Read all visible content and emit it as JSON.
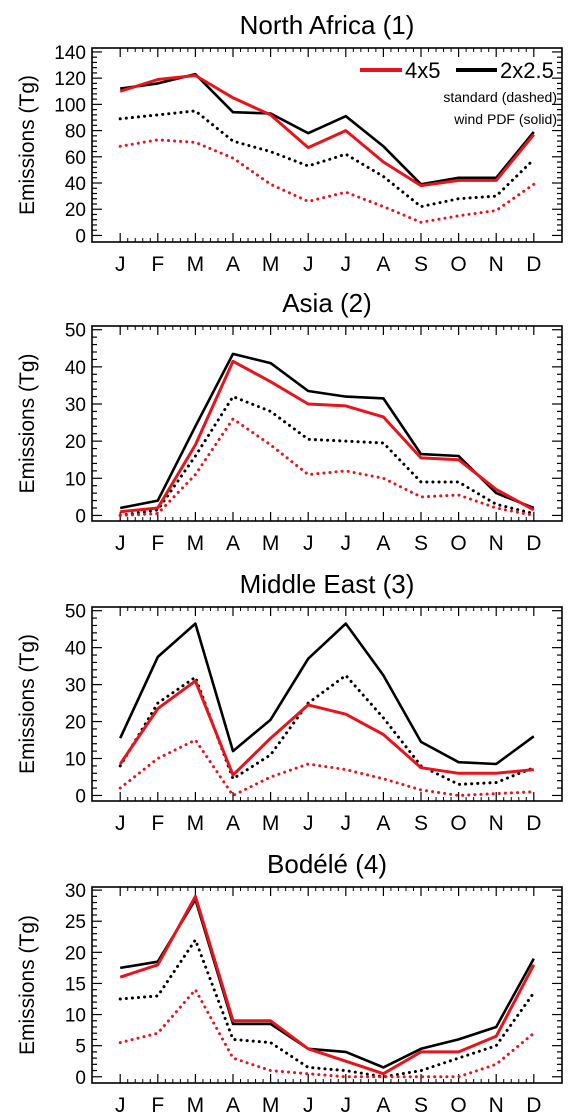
{
  "figure": {
    "months": [
      "J",
      "F",
      "M",
      "A",
      "M",
      "J",
      "J",
      "A",
      "S",
      "O",
      "N",
      "D"
    ],
    "legend": {
      "entries": [
        {
          "label": "4x5",
          "color": "#e8141b"
        },
        {
          "label": "2x2.5",
          "color": "#000000"
        }
      ],
      "note1": "standard (dashed)",
      "note2": "wind PDF (solid)"
    }
  },
  "chart_data": [
    {
      "type": "line",
      "title": "North Africa (1)",
      "xlabel": "",
      "ylabel": "Emissions (Tg)",
      "categories": [
        "J",
        "F",
        "M",
        "A",
        "M",
        "J",
        "J",
        "A",
        "S",
        "O",
        "N",
        "D"
      ],
      "ylim": [
        -5,
        143
      ],
      "yticks": [
        0,
        20,
        40,
        60,
        80,
        100,
        120,
        140
      ],
      "series": [
        {
          "name": "2x2.5 wind PDF (solid)",
          "color": "#000000",
          "style": "solid",
          "values": [
            112,
            116,
            123,
            94,
            93,
            78,
            91,
            68,
            39,
            44,
            44,
            79
          ]
        },
        {
          "name": "4x5 wind PDF (solid)",
          "color": "#e8141b",
          "style": "solid",
          "values": [
            110,
            119,
            122,
            105,
            92,
            67,
            80,
            56,
            38,
            42,
            42,
            77
          ]
        },
        {
          "name": "2x2.5 standard (dashed)",
          "color": "#000000",
          "style": "dotted",
          "values": [
            89,
            92,
            95,
            72,
            64,
            53,
            62,
            45,
            22,
            28,
            30,
            58
          ]
        },
        {
          "name": "4x5 standard (dashed)",
          "color": "#e8141b",
          "style": "dotted",
          "values": [
            68,
            73,
            71,
            59,
            39,
            26,
            33,
            22,
            10,
            15,
            19,
            39
          ]
        }
      ]
    },
    {
      "type": "line",
      "title": "Asia (2)",
      "xlabel": "",
      "ylabel": "Emissions (Tg)",
      "categories": [
        "J",
        "F",
        "M",
        "A",
        "M",
        "J",
        "J",
        "A",
        "S",
        "O",
        "N",
        "D"
      ],
      "ylim": [
        -1.5,
        51
      ],
      "yticks": [
        0,
        10,
        20,
        30,
        40,
        50
      ],
      "series": [
        {
          "name": "2x2.5 wind PDF (solid)",
          "color": "#000000",
          "style": "solid",
          "values": [
            2,
            4,
            24,
            43.5,
            41,
            33.5,
            32,
            31.5,
            16.5,
            16,
            6,
            2
          ]
        },
        {
          "name": "4x5 wind PDF (solid)",
          "color": "#e8141b",
          "style": "solid",
          "values": [
            1,
            2,
            19,
            41.5,
            36,
            30,
            29.5,
            26.5,
            15.5,
            15,
            7,
            1.5
          ]
        },
        {
          "name": "2x2.5 standard (dashed)",
          "color": "#000000",
          "style": "dotted",
          "values": [
            0,
            1.5,
            16,
            32,
            28,
            20.5,
            20,
            19.5,
            9,
            9,
            3,
            0.5
          ]
        },
        {
          "name": "4x5 standard (dashed)",
          "color": "#e8141b",
          "style": "dotted",
          "values": [
            0,
            0.5,
            11,
            26,
            19,
            11,
            12,
            10,
            5,
            5.5,
            2,
            0
          ]
        }
      ]
    },
    {
      "type": "line",
      "title": "Middle East (3)",
      "xlabel": "",
      "ylabel": "Emissions (Tg)",
      "categories": [
        "J",
        "F",
        "M",
        "A",
        "M",
        "J",
        "J",
        "A",
        "S",
        "O",
        "N",
        "D"
      ],
      "ylim": [
        -1.5,
        51
      ],
      "yticks": [
        0,
        10,
        20,
        30,
        40,
        50
      ],
      "series": [
        {
          "name": "2x2.5 wind PDF (solid)",
          "color": "#000000",
          "style": "solid",
          "values": [
            15.5,
            37.5,
            46.5,
            12,
            20.5,
            37,
            46.5,
            32.5,
            14.5,
            9,
            8.5,
            16
          ]
        },
        {
          "name": "4x5 wind PDF (solid)",
          "color": "#e8141b",
          "style": "solid",
          "values": [
            8.5,
            23.5,
            31,
            5.5,
            15.5,
            24.5,
            22,
            16.5,
            7.5,
            6,
            6,
            7
          ]
        },
        {
          "name": "2x2.5 standard (dashed)",
          "color": "#000000",
          "style": "dotted",
          "values": [
            8,
            25,
            32,
            4.5,
            11,
            25,
            32.5,
            21,
            8,
            3,
            3.5,
            7.5
          ]
        },
        {
          "name": "4x5 standard (dashed)",
          "color": "#e8141b",
          "style": "dotted",
          "values": [
            2,
            10,
            15,
            0,
            5,
            8.5,
            7,
            4.5,
            1.5,
            0,
            0.5,
            1
          ]
        }
      ]
    },
    {
      "type": "line",
      "title": "Bodélé (4)",
      "xlabel": "",
      "ylabel": "Emissions (Tg)",
      "categories": [
        "J",
        "F",
        "M",
        "A",
        "M",
        "J",
        "J",
        "A",
        "S",
        "O",
        "N",
        "D"
      ],
      "ylim": [
        -1,
        30.5
      ],
      "yticks": [
        0,
        5,
        10,
        15,
        20,
        25,
        30
      ],
      "series": [
        {
          "name": "2x2.5 wind PDF (solid)",
          "color": "#000000",
          "style": "solid",
          "values": [
            17.5,
            18.5,
            28.5,
            8.5,
            8.5,
            4.5,
            4,
            1.5,
            4.5,
            6,
            8,
            19
          ]
        },
        {
          "name": "4x5 wind PDF (solid)",
          "color": "#e8141b",
          "style": "solid",
          "values": [
            16,
            18,
            29,
            9,
            9,
            4.5,
            2.5,
            0.5,
            4,
            4,
            6.5,
            18
          ]
        },
        {
          "name": "2x2.5 standard (dashed)",
          "color": "#000000",
          "style": "dotted",
          "values": [
            12.5,
            13,
            22,
            6,
            5.5,
            1.5,
            1,
            0,
            1,
            3,
            5,
            13.5
          ]
        },
        {
          "name": "4x5 standard (dashed)",
          "color": "#e8141b",
          "style": "dotted",
          "values": [
            5.5,
            7,
            14,
            3,
            1,
            0.5,
            0,
            0,
            0,
            0,
            2,
            7
          ]
        }
      ]
    }
  ]
}
